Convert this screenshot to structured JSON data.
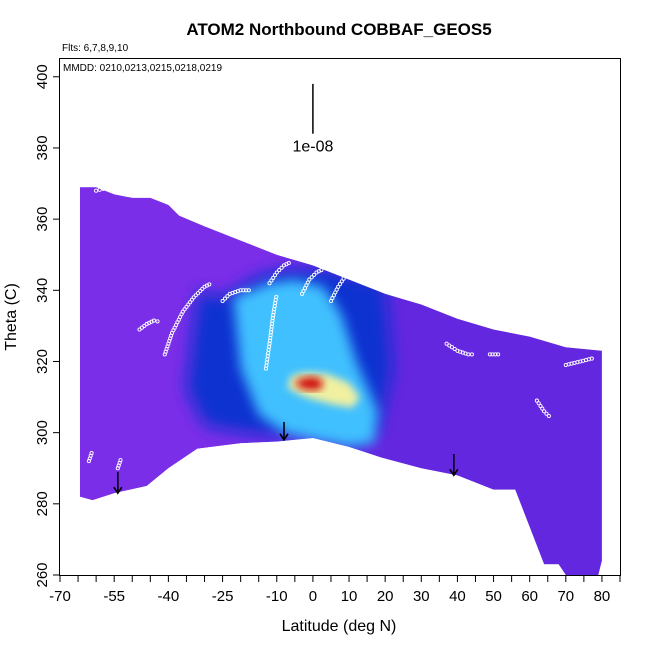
{
  "chart_data": {
    "type": "heatmap",
    "title": "ATOM2 Northbound COBBAF_GEOS5",
    "flights_label": "Flts: 6,7,8,9,10",
    "dates_label": "MMDD: 0210,0213,0215,0218,0219",
    "xlabel": "Latitude (deg N)",
    "ylabel": "Theta (C)",
    "xlim": [
      -70,
      85
    ],
    "ylim": [
      260,
      405
    ],
    "x_tick_labels": [
      "-70",
      "-55",
      "-40",
      "-25",
      "-10",
      "0",
      "10",
      "20",
      "30",
      "40",
      "50",
      "60",
      "70",
      "80"
    ],
    "x_tick_values": [
      -70,
      -55,
      -40,
      -25,
      -10,
      0,
      10,
      20,
      30,
      40,
      50,
      60,
      70,
      80
    ],
    "x_minor_ticks": [
      -65,
      -60,
      -50,
      -45,
      -35,
      -30,
      -20,
      -15,
      -5,
      5,
      15,
      25,
      35,
      45,
      55,
      65,
      75,
      85
    ],
    "y_tick_labels": [
      "260",
      "280",
      "300",
      "320",
      "340",
      "360",
      "380",
      "400"
    ],
    "y_tick_values": [
      260,
      280,
      300,
      320,
      340,
      360,
      380,
      400
    ],
    "scale_bar_label": "1e-08",
    "scale_bar": {
      "x": 0,
      "y_top": 398,
      "y_bottom": 384
    },
    "colors": {
      "low": "#7a2ee8",
      "mid": "#1030d0",
      "cyan": "#40c0ff",
      "high": "#d01010",
      "marker": "#ffffff"
    },
    "upper_boundary": [
      [
        -64.5,
        369
      ],
      [
        -60,
        369
      ],
      [
        -55,
        367
      ],
      [
        -50,
        366
      ],
      [
        -45,
        366
      ],
      [
        -40,
        364
      ],
      [
        -37,
        361
      ],
      [
        -30,
        358
      ],
      [
        -20,
        354
      ],
      [
        -10,
        350
      ],
      [
        0,
        347
      ],
      [
        10,
        343
      ],
      [
        20,
        339
      ],
      [
        30,
        336
      ],
      [
        40,
        332
      ],
      [
        50,
        329
      ],
      [
        60,
        327
      ],
      [
        70,
        324
      ],
      [
        80,
        323
      ]
    ],
    "lower_boundary": [
      [
        -64.5,
        282
      ],
      [
        -61,
        281
      ],
      [
        -55,
        283
      ],
      [
        -46,
        285
      ],
      [
        -40,
        290
      ],
      [
        -32,
        295.5
      ],
      [
        -20,
        297
      ],
      [
        -10,
        297.5
      ],
      [
        0,
        298.5
      ],
      [
        10,
        296
      ],
      [
        19,
        293
      ],
      [
        30,
        290
      ],
      [
        40,
        288
      ],
      [
        50,
        284
      ],
      [
        56,
        284
      ],
      [
        64,
        263
      ],
      [
        68,
        263
      ],
      [
        70,
        260
      ],
      [
        79,
        260
      ],
      [
        80,
        264
      ]
    ],
    "dense_blue_band": [
      [
        -32,
        340
      ],
      [
        -25,
        338
      ],
      [
        -15,
        344
      ],
      [
        -8,
        346
      ],
      [
        5,
        346
      ],
      [
        15,
        343
      ],
      [
        20,
        342
      ],
      [
        22,
        318
      ],
      [
        18,
        300
      ],
      [
        10,
        296
      ],
      [
        0,
        299
      ],
      [
        -10,
        299
      ],
      [
        -20,
        300
      ],
      [
        -30,
        302
      ],
      [
        -35,
        312
      ]
    ],
    "cyan_region": [
      [
        -22,
        338
      ],
      [
        -12,
        342
      ],
      [
        -5,
        343
      ],
      [
        3,
        341
      ],
      [
        8,
        333
      ],
      [
        12,
        320
      ],
      [
        18,
        306
      ],
      [
        17,
        297
      ],
      [
        10,
        296
      ],
      [
        0,
        298
      ],
      [
        -8,
        300
      ],
      [
        -15,
        305
      ],
      [
        -20,
        318
      ]
    ],
    "hot_core": [
      [
        -6,
        316
      ],
      [
        -2,
        317
      ],
      [
        4,
        316.5
      ],
      [
        10,
        314
      ],
      [
        13,
        310
      ],
      [
        11,
        307
      ],
      [
        5,
        308
      ],
      [
        -2,
        310
      ],
      [
        -7,
        312.5
      ]
    ],
    "red_core": [
      [
        -4,
        315
      ],
      [
        0,
        315.8
      ],
      [
        3,
        314.5
      ],
      [
        2,
        312
      ],
      [
        -2,
        312
      ],
      [
        -5,
        313.5
      ]
    ],
    "flight_tracks": [
      [
        [
          -60,
          368
        ],
        [
          -58,
          368.5
        ],
        [
          -56,
          369
        ],
        [
          -54,
          368
        ]
      ],
      [
        [
          -48,
          329
        ],
        [
          -46,
          330.5
        ],
        [
          -44,
          331.5
        ],
        [
          -42,
          331
        ]
      ],
      [
        [
          -41,
          322
        ],
        [
          -39,
          328
        ],
        [
          -36,
          334
        ],
        [
          -33,
          338
        ],
        [
          -30,
          341
        ],
        [
          -28,
          342
        ]
      ],
      [
        [
          -25,
          337
        ],
        [
          -23,
          339
        ],
        [
          -20,
          340
        ],
        [
          -17,
          340
        ]
      ],
      [
        [
          -12,
          342
        ],
        [
          -10,
          345
        ],
        [
          -8,
          347
        ],
        [
          -6,
          348
        ]
      ],
      [
        [
          -3,
          339
        ],
        [
          -1,
          343
        ],
        [
          1,
          345
        ],
        [
          3,
          346
        ]
      ],
      [
        [
          5,
          337
        ],
        [
          7,
          341
        ],
        [
          9,
          344
        ],
        [
          11,
          345
        ]
      ],
      [
        [
          17,
          343
        ],
        [
          19,
          345
        ],
        [
          21,
          346
        ]
      ],
      [
        [
          -13,
          318
        ],
        [
          -12,
          325
        ],
        [
          -11,
          333
        ],
        [
          -10,
          339
        ]
      ],
      [
        [
          37,
          325
        ],
        [
          40,
          323
        ],
        [
          43,
          322
        ],
        [
          45,
          322
        ]
      ],
      [
        [
          49,
          322
        ],
        [
          52,
          322
        ]
      ],
      [
        [
          62,
          309
        ],
        [
          64,
          306
        ],
        [
          66,
          304
        ]
      ],
      [
        [
          70,
          319
        ],
        [
          74,
          320
        ],
        [
          78,
          321
        ]
      ],
      [
        [
          -54,
          290
        ],
        [
          -53,
          293
        ]
      ],
      [
        [
          -62,
          292
        ],
        [
          -61,
          295
        ]
      ]
    ],
    "arrows": [
      {
        "x": -54,
        "y_from": 289,
        "y_to": 283
      },
      {
        "x": -8,
        "y_from": 303,
        "y_to": 298
      },
      {
        "x": 39,
        "y_from": 294,
        "y_to": 288
      }
    ]
  }
}
